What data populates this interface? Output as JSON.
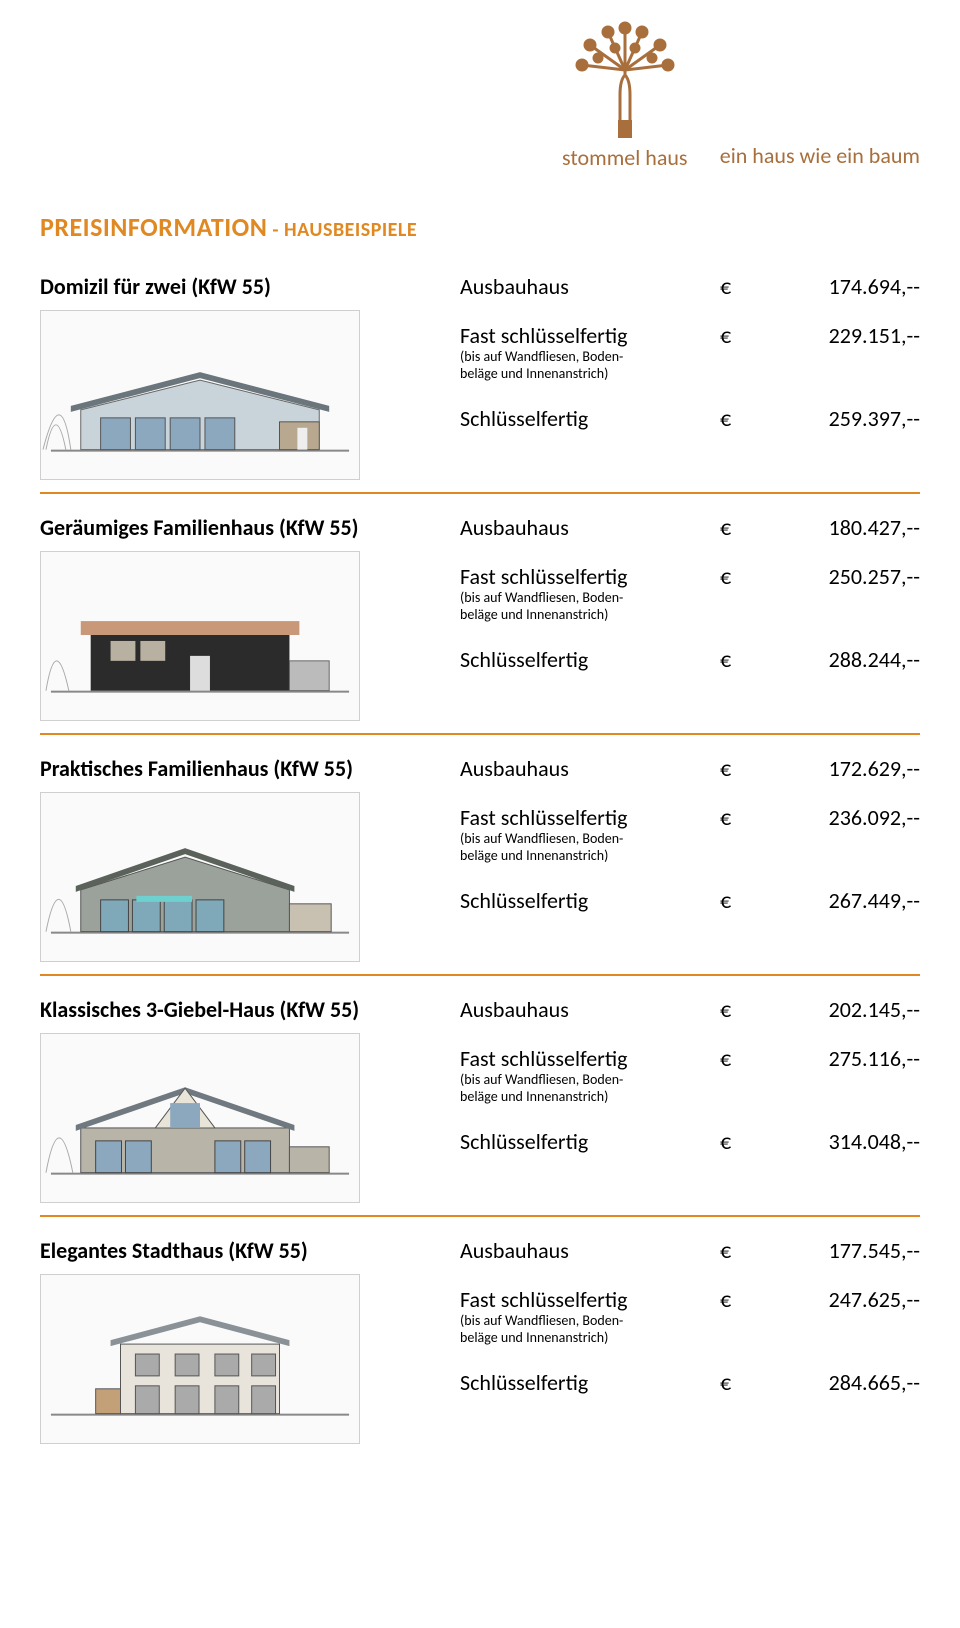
{
  "brand": {
    "name": "stommel haus",
    "tagline": "ein haus wie ein baum",
    "logo_color": "#a86f3c"
  },
  "title_main": "PREISINFORMATION",
  "title_sub": " - HAUSBEISPIELE",
  "title_color": "#e08922",
  "divider_color": "#e08922",
  "currency": "€",
  "note_text": "(bis auf Wandfliesen, Boden-\nbeläge und Innenanstrich)",
  "labels": {
    "ausbau": "Ausbauhaus",
    "fast": "Fast schlüsselfertig",
    "schluessel": "Schlüsselfertig"
  },
  "houses": [
    {
      "name": "Domizil für zwei (KfW 55)",
      "ausbau": "174.694,--",
      "fast": "229.151,--",
      "schluessel": "259.397,--",
      "svg": "domizil"
    },
    {
      "name": "Geräumiges Familienhaus (KfW 55)",
      "ausbau": "180.427,--",
      "fast": "250.257,--",
      "schluessel": "288.244,--",
      "svg": "familien"
    },
    {
      "name": "Praktisches Familienhaus (KfW 55)",
      "ausbau": "172.629,--",
      "fast": "236.092,--",
      "schluessel": "267.449,--",
      "svg": "praktisch"
    },
    {
      "name": "Klassisches 3-Giebel-Haus (KfW 55)",
      "ausbau": "202.145,--",
      "fast": "275.116,--",
      "schluessel": "314.048,--",
      "svg": "giebel"
    },
    {
      "name": "Elegantes Stadthaus (KfW 55)",
      "ausbau": "177.545,--",
      "fast": "247.625,--",
      "schluessel": "284.665,--",
      "svg": "stadt"
    }
  ]
}
